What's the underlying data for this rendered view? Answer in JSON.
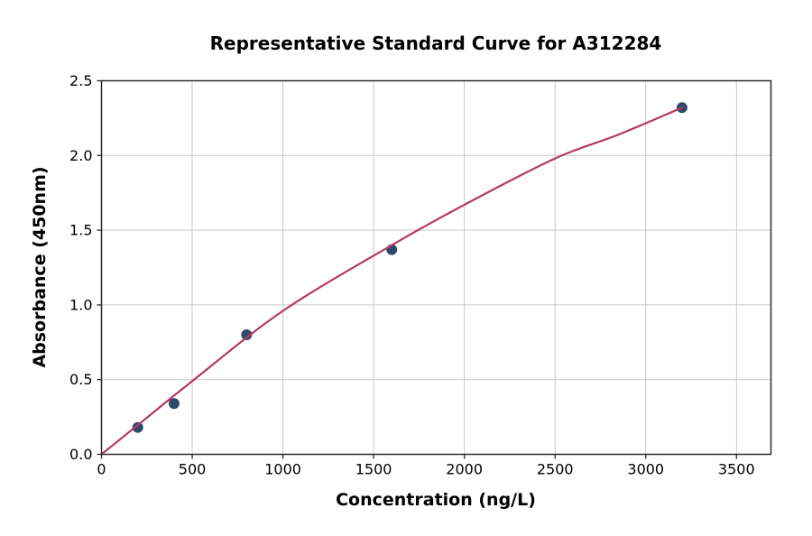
{
  "chart_data": {
    "type": "scatter",
    "title": "Representative Standard Curve for A312284",
    "xlabel": "Concentration (ng/L)",
    "ylabel": "Absorbance (450nm)",
    "xlim": [
      0,
      3690
    ],
    "ylim": [
      0,
      2.5
    ],
    "xticks": [
      0,
      500,
      1000,
      1500,
      2000,
      2500,
      3000,
      3500
    ],
    "yticks": [
      0,
      0.5,
      1,
      1.5,
      2,
      2.5
    ],
    "ytick_decimals": 1,
    "grid": true,
    "legend": false,
    "series": [
      {
        "name": "standard-points",
        "type": "scatter",
        "x": [
          200,
          400,
          800,
          1600,
          3200
        ],
        "y": [
          0.18,
          0.34,
          0.8,
          1.37,
          2.32
        ],
        "color": "#2d4a68",
        "marker_radius": 6
      },
      {
        "name": "fit-curve",
        "type": "line",
        "x": [
          0,
          250,
          500,
          1000,
          1600,
          2000,
          2500,
          2850,
          3200
        ],
        "y": [
          0,
          0.245,
          0.49,
          0.96,
          1.4,
          1.67,
          1.98,
          2.14,
          2.32
        ],
        "color": "#b43a5f",
        "width": 2.2
      }
    ],
    "colors": {
      "grid": "#c9c9c9",
      "spine": "#2b2b2b",
      "tick": "#2b2b2b",
      "text": "#000000",
      "background": "#ffffff"
    }
  }
}
